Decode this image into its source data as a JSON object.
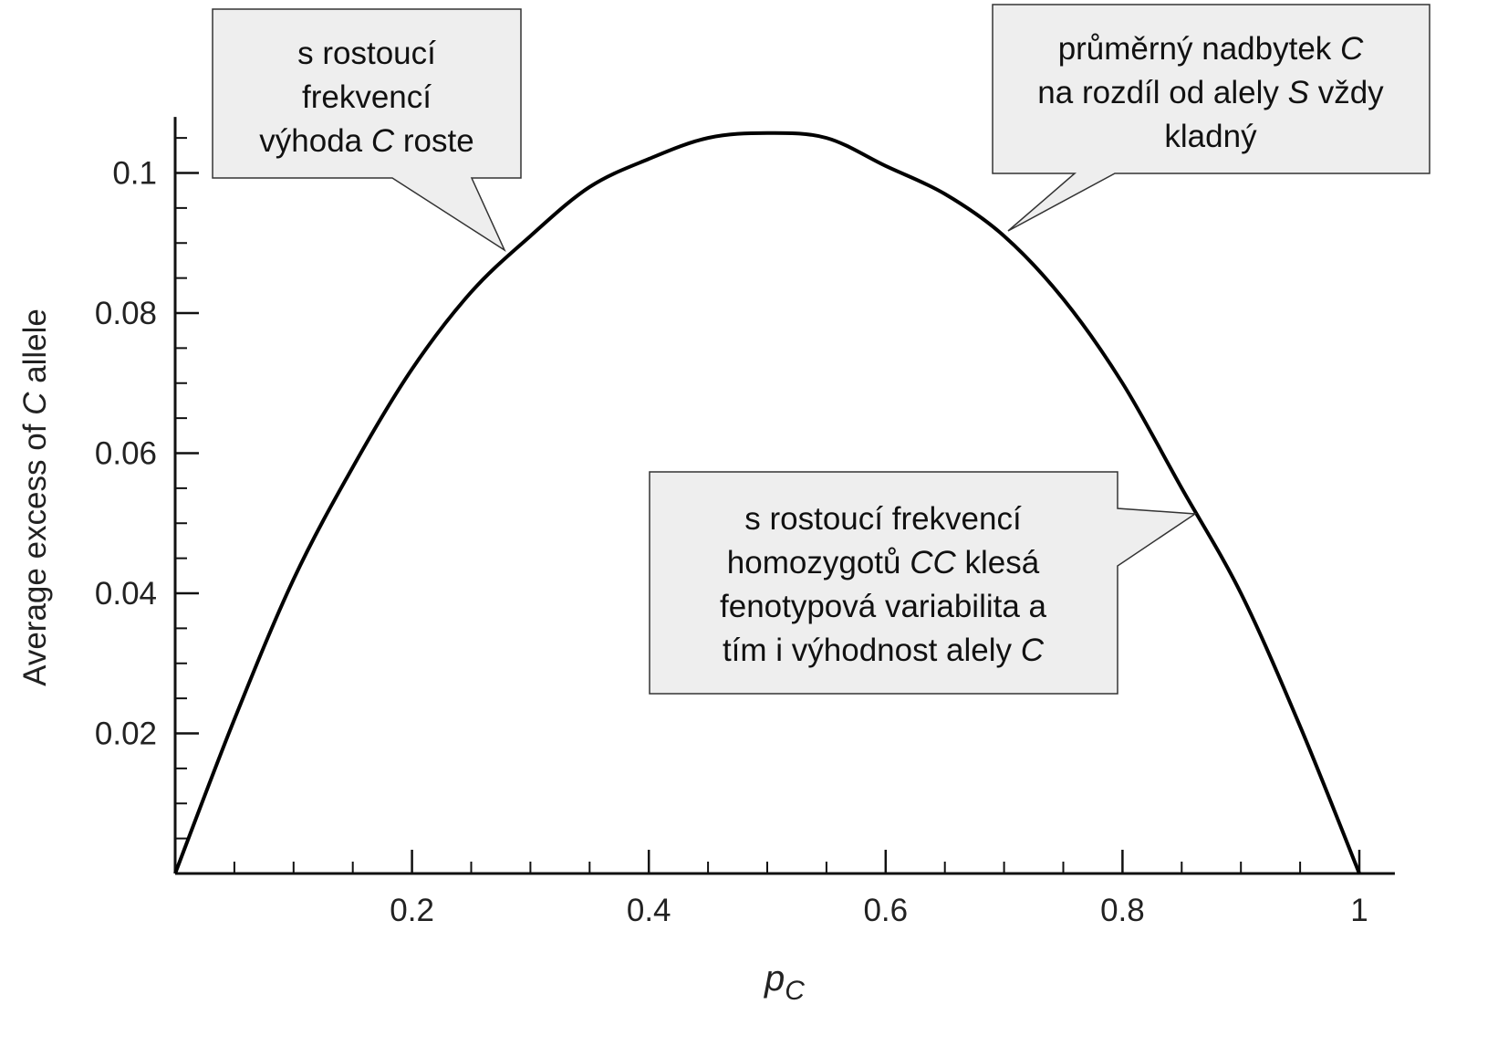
{
  "chart_data": {
    "type": "line",
    "color": "#000000",
    "x": [
      0,
      0.05,
      0.1,
      0.15,
      0.2,
      0.25,
      0.3,
      0.35,
      0.4,
      0.45,
      0.5,
      0.55,
      0.6,
      0.65,
      0.7,
      0.75,
      0.8,
      0.85,
      0.9,
      0.95,
      1
    ],
    "values": [
      0,
      0.022,
      0.042,
      0.058,
      0.072,
      0.083,
      0.091,
      0.098,
      0.102,
      0.105,
      0.1057,
      0.105,
      0.101,
      0.097,
      0.091,
      0.082,
      0.07,
      0.055,
      0.04,
      0.021,
      0
    ],
    "xlim": [
      0,
      1.03
    ],
    "ylim": [
      0,
      0.108
    ],
    "xticks": [
      0.2,
      0.4,
      0.6,
      0.8,
      1
    ],
    "yticks": [
      0.02,
      0.04,
      0.06,
      0.08,
      0.1
    ],
    "xminor_ticks": [
      0.05,
      0.1,
      0.15,
      0.25,
      0.3,
      0.35,
      0.45,
      0.5,
      0.55,
      0.65,
      0.7,
      0.75,
      0.85,
      0.9,
      0.95
    ],
    "yminor_ticks": [
      0.005,
      0.01,
      0.015,
      0.025,
      0.03,
      0.035,
      0.045,
      0.05,
      0.055,
      0.065,
      0.07,
      0.075,
      0.085,
      0.09,
      0.095,
      0.105
    ],
    "y_label": {
      "before": "Average excess of ",
      "italic": "C",
      "after": " allele"
    },
    "x_label": {
      "main": "p",
      "sub": "C"
    },
    "annotations": [
      {
        "lines": [
          [
            {
              "text": "s rostoucí"
            }
          ],
          [
            {
              "text": "frekvencí"
            }
          ],
          [
            {
              "text": "výhoda "
            },
            {
              "text": "C",
              "italic": true
            },
            {
              "text": " roste"
            }
          ]
        ]
      },
      {
        "lines": [
          [
            {
              "text": "průměrný nadbytek "
            },
            {
              "text": "C",
              "italic": true
            }
          ],
          [
            {
              "text": "na rozdíl od alely "
            },
            {
              "text": "S",
              "italic": true
            },
            {
              "text": " vždy"
            }
          ],
          [
            {
              "text": "kladný"
            }
          ]
        ]
      },
      {
        "lines": [
          [
            {
              "text": "s rostoucí frekvencí"
            }
          ],
          [
            {
              "text": "homozygotů "
            },
            {
              "text": "CC",
              "italic": true
            },
            {
              "text": " klesá"
            }
          ],
          [
            {
              "text": "fenotypová variabilita a"
            }
          ],
          [
            {
              "text": "tím i výhodnost alely "
            },
            {
              "text": "C",
              "italic": true
            }
          ]
        ]
      }
    ]
  }
}
